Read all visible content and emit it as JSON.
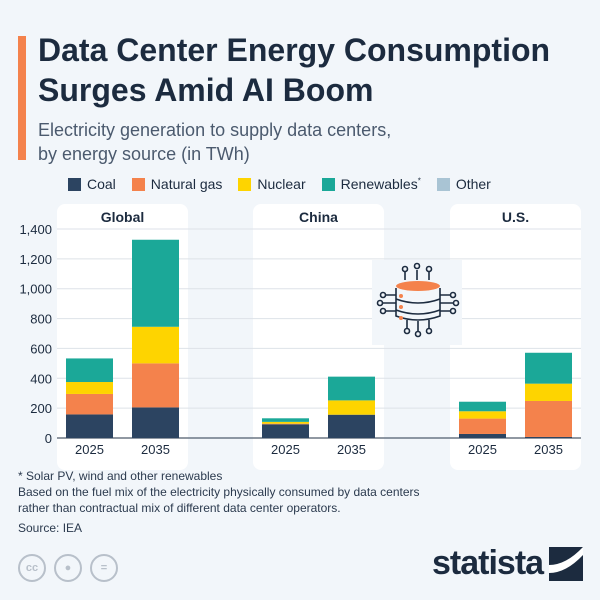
{
  "title": "Data Center Energy Consumption Surges Amid AI Boom",
  "subtitle_line1": "Electricity generation to supply data centers,",
  "subtitle_line2": "by energy source (in TWh)",
  "footnote": "* Solar PV, wind and other renewables",
  "note_line1": "Based on the fuel mix of the electricity physically consumed by data centers",
  "note_line2": "rather than contractual mix of different data center operators.",
  "source": "Source: IEA",
  "brand": "statista",
  "license_icons": [
    "cc-icon",
    "person-icon",
    "equals-icon"
  ],
  "license_labels": {
    "cc": "cc",
    "eq": "="
  },
  "icon": "data-center-server-icon",
  "chart_data": {
    "type": "bar",
    "stacked": true,
    "ylim": [
      0,
      1400
    ],
    "yticks": [
      0,
      200,
      400,
      600,
      800,
      1000,
      1200,
      1400
    ],
    "ytick_labels": [
      "0",
      "200",
      "400",
      "600",
      "800",
      "1,000",
      "1,200",
      "1,400"
    ],
    "grid": true,
    "legend_placement": "top",
    "legend": [
      "Coal",
      "Natural gas",
      "Nuclear",
      "Renewables",
      "Other"
    ],
    "legend_renewables_mark": "*",
    "colors": {
      "Coal": "#2c4461",
      "Natural gas": "#f4824c",
      "Nuclear": "#fed400",
      "Renewables": "#1ba898",
      "Other": "#a9c4d4"
    },
    "panels": [
      {
        "title": "Global",
        "categories": [
          "2025",
          "2035"
        ],
        "series": [
          {
            "name": "Coal",
            "values": [
              158,
              205
            ]
          },
          {
            "name": "Natural gas",
            "values": [
              137,
              295
            ]
          },
          {
            "name": "Nuclear",
            "values": [
              80,
              245
            ]
          },
          {
            "name": "Renewables",
            "values": [
              158,
              583
            ]
          },
          {
            "name": "Other",
            "values": [
              0,
              0
            ]
          }
        ]
      },
      {
        "title": "China",
        "categories": [
          "2025",
          "2035"
        ],
        "series": [
          {
            "name": "Coal",
            "values": [
              92,
              156
            ]
          },
          {
            "name": "Natural gas",
            "values": [
              4,
              0
            ]
          },
          {
            "name": "Nuclear",
            "values": [
              12,
              96
            ]
          },
          {
            "name": "Renewables",
            "values": [
              24,
              159
            ]
          },
          {
            "name": "Other",
            "values": [
              0,
              0
            ]
          }
        ]
      },
      {
        "title": "U.S.",
        "categories": [
          "2025",
          "2035"
        ],
        "series": [
          {
            "name": "Coal",
            "values": [
              27,
              7
            ]
          },
          {
            "name": "Natural gas",
            "values": [
              103,
              241
            ]
          },
          {
            "name": "Nuclear",
            "values": [
              49,
              116
            ]
          },
          {
            "name": "Renewables",
            "values": [
              64,
              207
            ]
          },
          {
            "name": "Other",
            "values": [
              0,
              0
            ]
          }
        ]
      }
    ]
  }
}
